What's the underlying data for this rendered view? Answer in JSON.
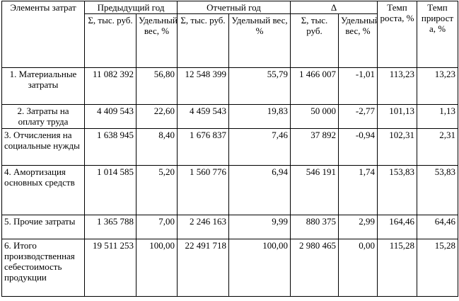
{
  "headers": {
    "element": "Элементы затрат",
    "prev_year": "Предыдущий год",
    "report_year": "Отчетный год",
    "delta": "Δ",
    "growth_rate": "Темп роста, %",
    "increase_rate": "Темп прирост а, %",
    "sum": "Σ, тыс. руб.",
    "share": "Удельный вес, %",
    "share_wide": "Удельный вес, %"
  },
  "rows": [
    {
      "name": "1. Материальные затраты",
      "align": "center",
      "prev_sum": "11 082 392",
      "prev_share": "56,80",
      "rep_sum": "12 548 399",
      "rep_share": "55,79",
      "d_sum": "1 466 007",
      "d_share": "-1,01",
      "growth": "113,23",
      "increase": "13,23"
    },
    {
      "name": "2. Затраты на оплату труда",
      "align": "center",
      "prev_sum": "4 409 543",
      "prev_share": "22,60",
      "rep_sum": "4 459 543",
      "rep_share": "19,83",
      "d_sum": "50 000",
      "d_share": "-2,77",
      "growth": "101,13",
      "increase": "1,13"
    },
    {
      "name": "3. Отчисления на социальные нужды",
      "align": "left",
      "prev_sum": "1 638 945",
      "prev_share": "8,40",
      "rep_sum": "1 676 837",
      "rep_share": "7,46",
      "d_sum": "37 892",
      "d_share": "-0,94",
      "growth": "102,31",
      "increase": "2,31"
    },
    {
      "name": "4. Амортизация основных средств",
      "align": "left",
      "prev_sum": "1 014 585",
      "prev_share": "5,20",
      "rep_sum": "1 560 776",
      "rep_share": "6,94",
      "d_sum": "546 191",
      "d_share": "1,74",
      "growth": "153,83",
      "increase": "53,83"
    },
    {
      "name": "5. Прочие затраты",
      "align": "left",
      "prev_sum": "1 365 788",
      "prev_share": "7,00",
      "rep_sum": "2 246 163",
      "rep_share": "9,99",
      "d_sum": "880 375",
      "d_share": "2,99",
      "growth": "164,46",
      "increase": "64,46"
    },
    {
      "name": "6. Итого производственная себестоимость продукции",
      "align": "left",
      "prev_sum": "19 511 253",
      "prev_share": "100,00",
      "rep_sum": "22 491 718",
      "rep_share": "100,00",
      "d_sum": "2 980 465",
      "d_share": "0,00",
      "growth": "115,28",
      "increase": "15,28"
    }
  ]
}
